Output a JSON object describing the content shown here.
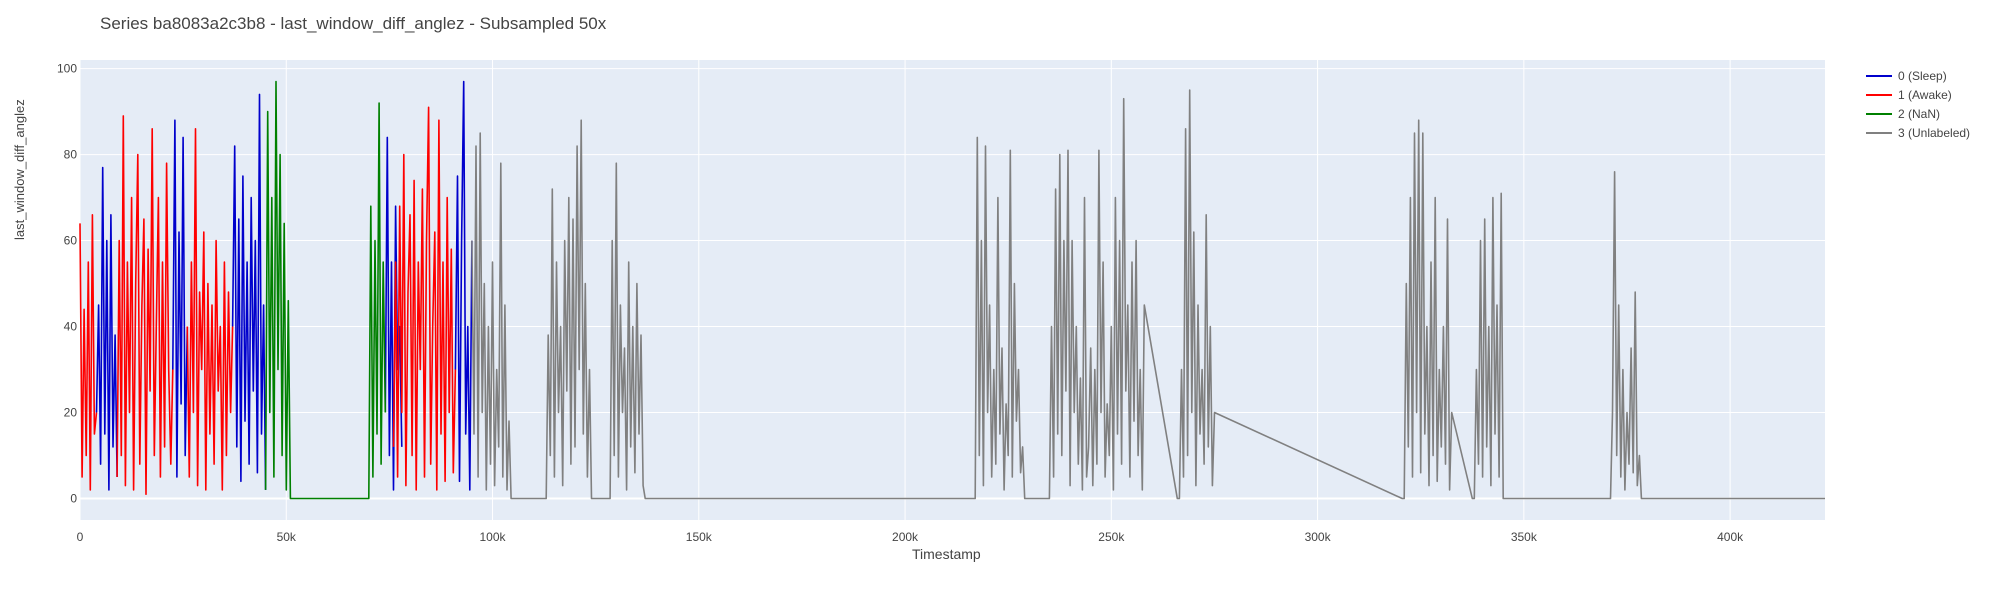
{
  "chart_data": {
    "type": "line",
    "title": "Series ba8083a2c3b8 - last_window_diff_anglez - Subsampled 50x",
    "xlabel": "Timestamp",
    "ylabel": "last_window_diff_anglez",
    "xlim": [
      0,
      423000
    ],
    "ylim": [
      -5,
      102
    ],
    "grid": true,
    "legend_position": "top-right, outside plot",
    "x_ticks": [
      {
        "value": 0,
        "label": "0"
      },
      {
        "value": 50000,
        "label": "50k"
      },
      {
        "value": 100000,
        "label": "100k"
      },
      {
        "value": 150000,
        "label": "150k"
      },
      {
        "value": 200000,
        "label": "200k"
      },
      {
        "value": 250000,
        "label": "250k"
      },
      {
        "value": 300000,
        "label": "300k"
      },
      {
        "value": 350000,
        "label": "350k"
      },
      {
        "value": 400000,
        "label": "400k"
      }
    ],
    "y_ticks": [
      {
        "value": 0,
        "label": "0"
      },
      {
        "value": 20,
        "label": "20"
      },
      {
        "value": 40,
        "label": "40"
      },
      {
        "value": 60,
        "label": "60"
      },
      {
        "value": 80,
        "label": "80"
      },
      {
        "value": 100,
        "label": "100"
      }
    ],
    "series": [
      {
        "name": "0 (Sleep)",
        "color": "#0000cc",
        "segments": [
          {
            "x": [
              4000,
              4500,
              5000,
              5500,
              6000,
              6500,
              7000,
              7500,
              8000,
              8500,
              9000
            ],
            "y": [
              20,
              45,
              8,
              77,
              15,
              60,
              2,
              66,
              12,
              38,
              5
            ]
          },
          {
            "x": [
              22500,
              23000,
              23500,
              24000,
              24500,
              25000,
              25500,
              26000
            ],
            "y": [
              30,
              88,
              5,
              62,
              22,
              84,
              10,
              40
            ]
          },
          {
            "x": [
              37000,
              37500,
              38000,
              38500,
              39000,
              39500,
              40000,
              40500,
              41000,
              41500,
              42000,
              42500,
              43000,
              43500,
              44000,
              44500,
              45000
            ],
            "y": [
              40,
              82,
              12,
              65,
              4,
              75,
              18,
              55,
              8,
              70,
              25,
              60,
              6,
              94,
              15,
              45,
              2
            ]
          },
          {
            "x": [
              74000,
              74500,
              75000,
              75500,
              76000,
              76500,
              77000,
              77500,
              78000
            ],
            "y": [
              20,
              84,
              10,
              55,
              2,
              68,
              30,
              40,
              12
            ]
          },
          {
            "x": [
              91000,
              91500,
              92000,
              92500,
              93000,
              93500,
              94000,
              94500,
              95000
            ],
            "y": [
              30,
              75,
              4,
              60,
              97,
              15,
              40,
              2,
              60
            ]
          }
        ]
      },
      {
        "name": "1 (Awake)",
        "color": "#ff0000",
        "segments": [
          {
            "x": [
              0,
              500,
              1000,
              1500,
              2000,
              2500,
              3000,
              3500,
              4000
            ],
            "y": [
              64,
              5,
              44,
              10,
              55,
              2,
              66,
              15,
              20
            ]
          },
          {
            "x": [
              9000,
              9500,
              10000,
              10500,
              11000,
              11500,
              12000,
              12500,
              13000,
              13500,
              14000,
              14500,
              15000,
              15500,
              16000,
              16500,
              17000,
              17500,
              18000,
              18500,
              19000,
              19500,
              20000,
              20500,
              21000,
              21500,
              22000,
              22500
            ],
            "y": [
              5,
              60,
              10,
              89,
              3,
              55,
              20,
              70,
              2,
              50,
              80,
              8,
              45,
              65,
              1,
              58,
              25,
              86,
              10,
              40,
              70,
              5,
              55,
              12,
              78,
              30,
              8,
              30
            ]
          },
          {
            "x": [
              26000,
              26500,
              27000,
              27500,
              28000,
              28500,
              29000,
              29500,
              30000,
              30500,
              31000,
              31500,
              32000,
              32500,
              33000,
              33500,
              34000,
              34500,
              35000,
              35500,
              36000,
              36500,
              37000
            ],
            "y": [
              40,
              5,
              55,
              20,
              86,
              3,
              48,
              30,
              62,
              2,
              50,
              15,
              45,
              8,
              60,
              25,
              40,
              2,
              55,
              10,
              48,
              20,
              40
            ]
          },
          {
            "x": [
              76000,
              76500,
              77000,
              77500,
              78000,
              78500,
              79000,
              79500,
              80000,
              80500,
              81000,
              81500,
              82000,
              82500,
              83000,
              83500,
              84000,
              84500,
              85000,
              85500,
              86000,
              86500,
              87000,
              87500,
              88000,
              88500,
              89000,
              89500,
              90000,
              90500,
              91000
            ],
            "y": [
              12,
              55,
              5,
              68,
              20,
              80,
              3,
              48,
              66,
              10,
              74,
              2,
              55,
              30,
              72,
              5,
              60,
              91,
              8,
              40,
              62,
              2,
              88,
              15,
              55,
              4,
              70,
              20,
              58,
              6,
              30
            ]
          }
        ]
      },
      {
        "name": "2 (NaN)",
        "color": "#008000",
        "segments": [
          {
            "x": [
              45000,
              45500,
              46000,
              46500,
              47000,
              47500,
              48000,
              48500,
              49000,
              49500,
              50000,
              50500,
              51000,
              70000,
              70500,
              71000,
              71500,
              72000,
              72500,
              73000,
              73500,
              74000
            ],
            "y": [
              2,
              90,
              20,
              70,
              5,
              97,
              30,
              80,
              10,
              64,
              2,
              46,
              0,
              0,
              68,
              5,
              60,
              15,
              92,
              8,
              55,
              20
            ]
          }
        ]
      },
      {
        "name": "3 (Unlabeled)",
        "color": "#808080",
        "segments": [
          {
            "x": [
              95000,
              95500,
              96000,
              96500,
              97000,
              97500,
              98000,
              98500,
              99000,
              99500,
              100000,
              100500,
              101000,
              101500,
              102000,
              102500,
              103000,
              103500,
              104000,
              104500,
              113000,
              113500,
              114000,
              114500,
              115000,
              115500,
              116000,
              116500,
              117000,
              117500,
              118000,
              118500,
              119000,
              119500,
              120000,
              120500,
              121000,
              121500,
              122000,
              122500,
              123000,
              123500,
              124000,
              128500,
              129000,
              129500,
              130000,
              130500,
              131000,
              131500,
              132000,
              132500,
              133000,
              133500,
              134000,
              134500,
              135000,
              135500,
              136000,
              136500,
              137000,
              217000,
              217500,
              218000,
              218500,
              219000,
              219500,
              220000,
              220500,
              221000,
              221500,
              222000,
              222500,
              223000,
              223500,
              224000,
              224500,
              225000,
              225500,
              226000,
              226500,
              227000,
              227500,
              228000,
              228500,
              229000,
              235000,
              235500,
              236000,
              236500,
              237000,
              237500,
              238000,
              238500,
              239000,
              239500,
              240000,
              240500,
              241000,
              241500,
              242000,
              242500,
              243000,
              243500,
              244000,
              244500,
              245000,
              245500,
              246000,
              246500,
              247000,
              247500,
              248000,
              248500,
              249000,
              249500,
              250000,
              250500,
              251000,
              251500,
              252000,
              252500,
              253000,
              253500,
              254000,
              254500,
              255000,
              255500,
              256000,
              256500,
              257000,
              257500,
              258000,
              266000,
              266500,
              267000,
              267500,
              268000,
              268500,
              269000,
              269500,
              270000,
              270500,
              271000,
              271500,
              272000,
              272500,
              273000,
              273500,
              274000,
              274500,
              275000,
              320500,
              321000,
              321500,
              322000,
              322500,
              323000,
              323500,
              324000,
              324500,
              325000,
              325500,
              326000,
              326500,
              327000,
              327500,
              328000,
              328500,
              329000,
              329500,
              330000,
              330500,
              331000,
              331500,
              332000,
              332500,
              337500,
              338000,
              338500,
              339000,
              339500,
              340000,
              340500,
              341000,
              341500,
              342000,
              342500,
              343000,
              343500,
              344000,
              344500,
              345000,
              371000,
              371500,
              372000,
              372500,
              373000,
              373500,
              374000,
              374500,
              375000,
              375500,
              376000,
              376500,
              377000,
              377500,
              378000,
              378500,
              423000
            ],
            "y": [
              60,
              15,
              82,
              5,
              85,
              20,
              50,
              2,
              40,
              8,
              55,
              3,
              30,
              12,
              78,
              5,
              45,
              2,
              18,
              0,
              0,
              38,
              10,
              72,
              5,
              55,
              20,
              40,
              3,
              60,
              25,
              70,
              8,
              65,
              12,
              82,
              30,
              88,
              15,
              50,
              5,
              30,
              0,
              0,
              60,
              10,
              78,
              5,
              45,
              20,
              35,
              2,
              55,
              12,
              40,
              6,
              50,
              15,
              38,
              3,
              0,
              0,
              84,
              10,
              60,
              3,
              82,
              20,
              45,
              5,
              30,
              8,
              70,
              15,
              35,
              2,
              22,
              10,
              81,
              5,
              50,
              18,
              30,
              6,
              12,
              0,
              0,
              40,
              5,
              72,
              15,
              80,
              10,
              60,
              25,
              81,
              3,
              60,
              20,
              40,
              8,
              28,
              2,
              70,
              5,
              12,
              35,
              3,
              30,
              8,
              81,
              20,
              55,
              5,
              22,
              10,
              40,
              2,
              70,
              15,
              60,
              8,
              93,
              25,
              45,
              5,
              55,
              18,
              60,
              10,
              30,
              2,
              45,
              0,
              0,
              30,
              5,
              86,
              10,
              95,
              20,
              62,
              3,
              45,
              15,
              30,
              8,
              66,
              12,
              40,
              3,
              20,
              0,
              0,
              50,
              12,
              70,
              5,
              85,
              20,
              88,
              6,
              85,
              15,
              40,
              3,
              55,
              10,
              70,
              4,
              30,
              12,
              40,
              8,
              65,
              2,
              20,
              0,
              0,
              30,
              8,
              60,
              5,
              65,
              12,
              40,
              3,
              70,
              15,
              45,
              5,
              71,
              0,
              0,
              20,
              76,
              10,
              45,
              5,
              30,
              2,
              20,
              8,
              35,
              6,
              48,
              3,
              10,
              0,
              0
            ]
          }
        ]
      }
    ]
  }
}
